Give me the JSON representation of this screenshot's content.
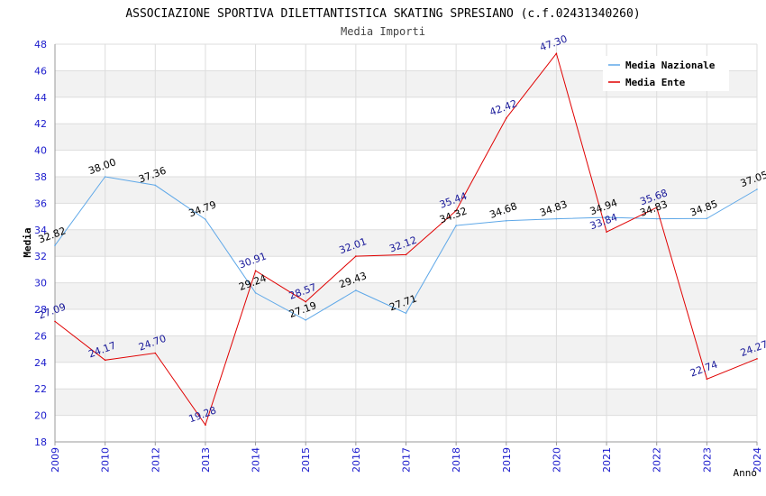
{
  "chart_data": {
    "type": "line",
    "title": "ASSOCIAZIONE SPORTIVA DILETTANTISTICA SKATING SPRESIANO (c.f.02431340260)",
    "subtitle": "Media Importi",
    "xlabel": "Anno",
    "ylabel": "Media",
    "ylim": [
      18,
      48
    ],
    "yticks": [
      "18",
      "20",
      "22",
      "24",
      "26",
      "28",
      "30",
      "32",
      "34",
      "36",
      "38",
      "40",
      "42",
      "44",
      "46",
      "48"
    ],
    "categories": [
      "2009",
      "2010",
      "2012",
      "2013",
      "2014",
      "2015",
      "2016",
      "2017",
      "2018",
      "2019",
      "2020",
      "2021",
      "2022",
      "2023",
      "2024"
    ],
    "legend_position": "top-right",
    "series": [
      {
        "name": "Media Nazionale",
        "color": "#5fa8e8",
        "label_color": "#000000",
        "values": [
          32.82,
          38.0,
          37.36,
          34.79,
          29.24,
          27.19,
          29.43,
          27.71,
          34.32,
          34.68,
          34.83,
          34.94,
          34.83,
          34.85,
          37.05
        ],
        "labels": [
          "32.82",
          "38.00",
          "37.36",
          "34.79",
          "29.24",
          "27.19",
          "29.43",
          "27.71",
          "34.32",
          "34.68",
          "34.83",
          "34.94",
          "34.83",
          "34.85",
          "37.05"
        ]
      },
      {
        "name": "Media Ente",
        "color": "#e00000",
        "label_color": "#1a1a9a",
        "values": [
          27.09,
          24.17,
          24.7,
          19.28,
          30.91,
          28.57,
          32.01,
          32.12,
          35.44,
          42.42,
          47.3,
          33.84,
          35.68,
          22.74,
          24.27
        ],
        "labels": [
          "27.09",
          "24.17",
          "24.70",
          "19.28",
          "30.91",
          "28.57",
          "32.01",
          "32.12",
          "35.44",
          "42.42",
          "47.30",
          "33.84",
          "35.68",
          "22.74",
          "24.27"
        ]
      }
    ]
  }
}
